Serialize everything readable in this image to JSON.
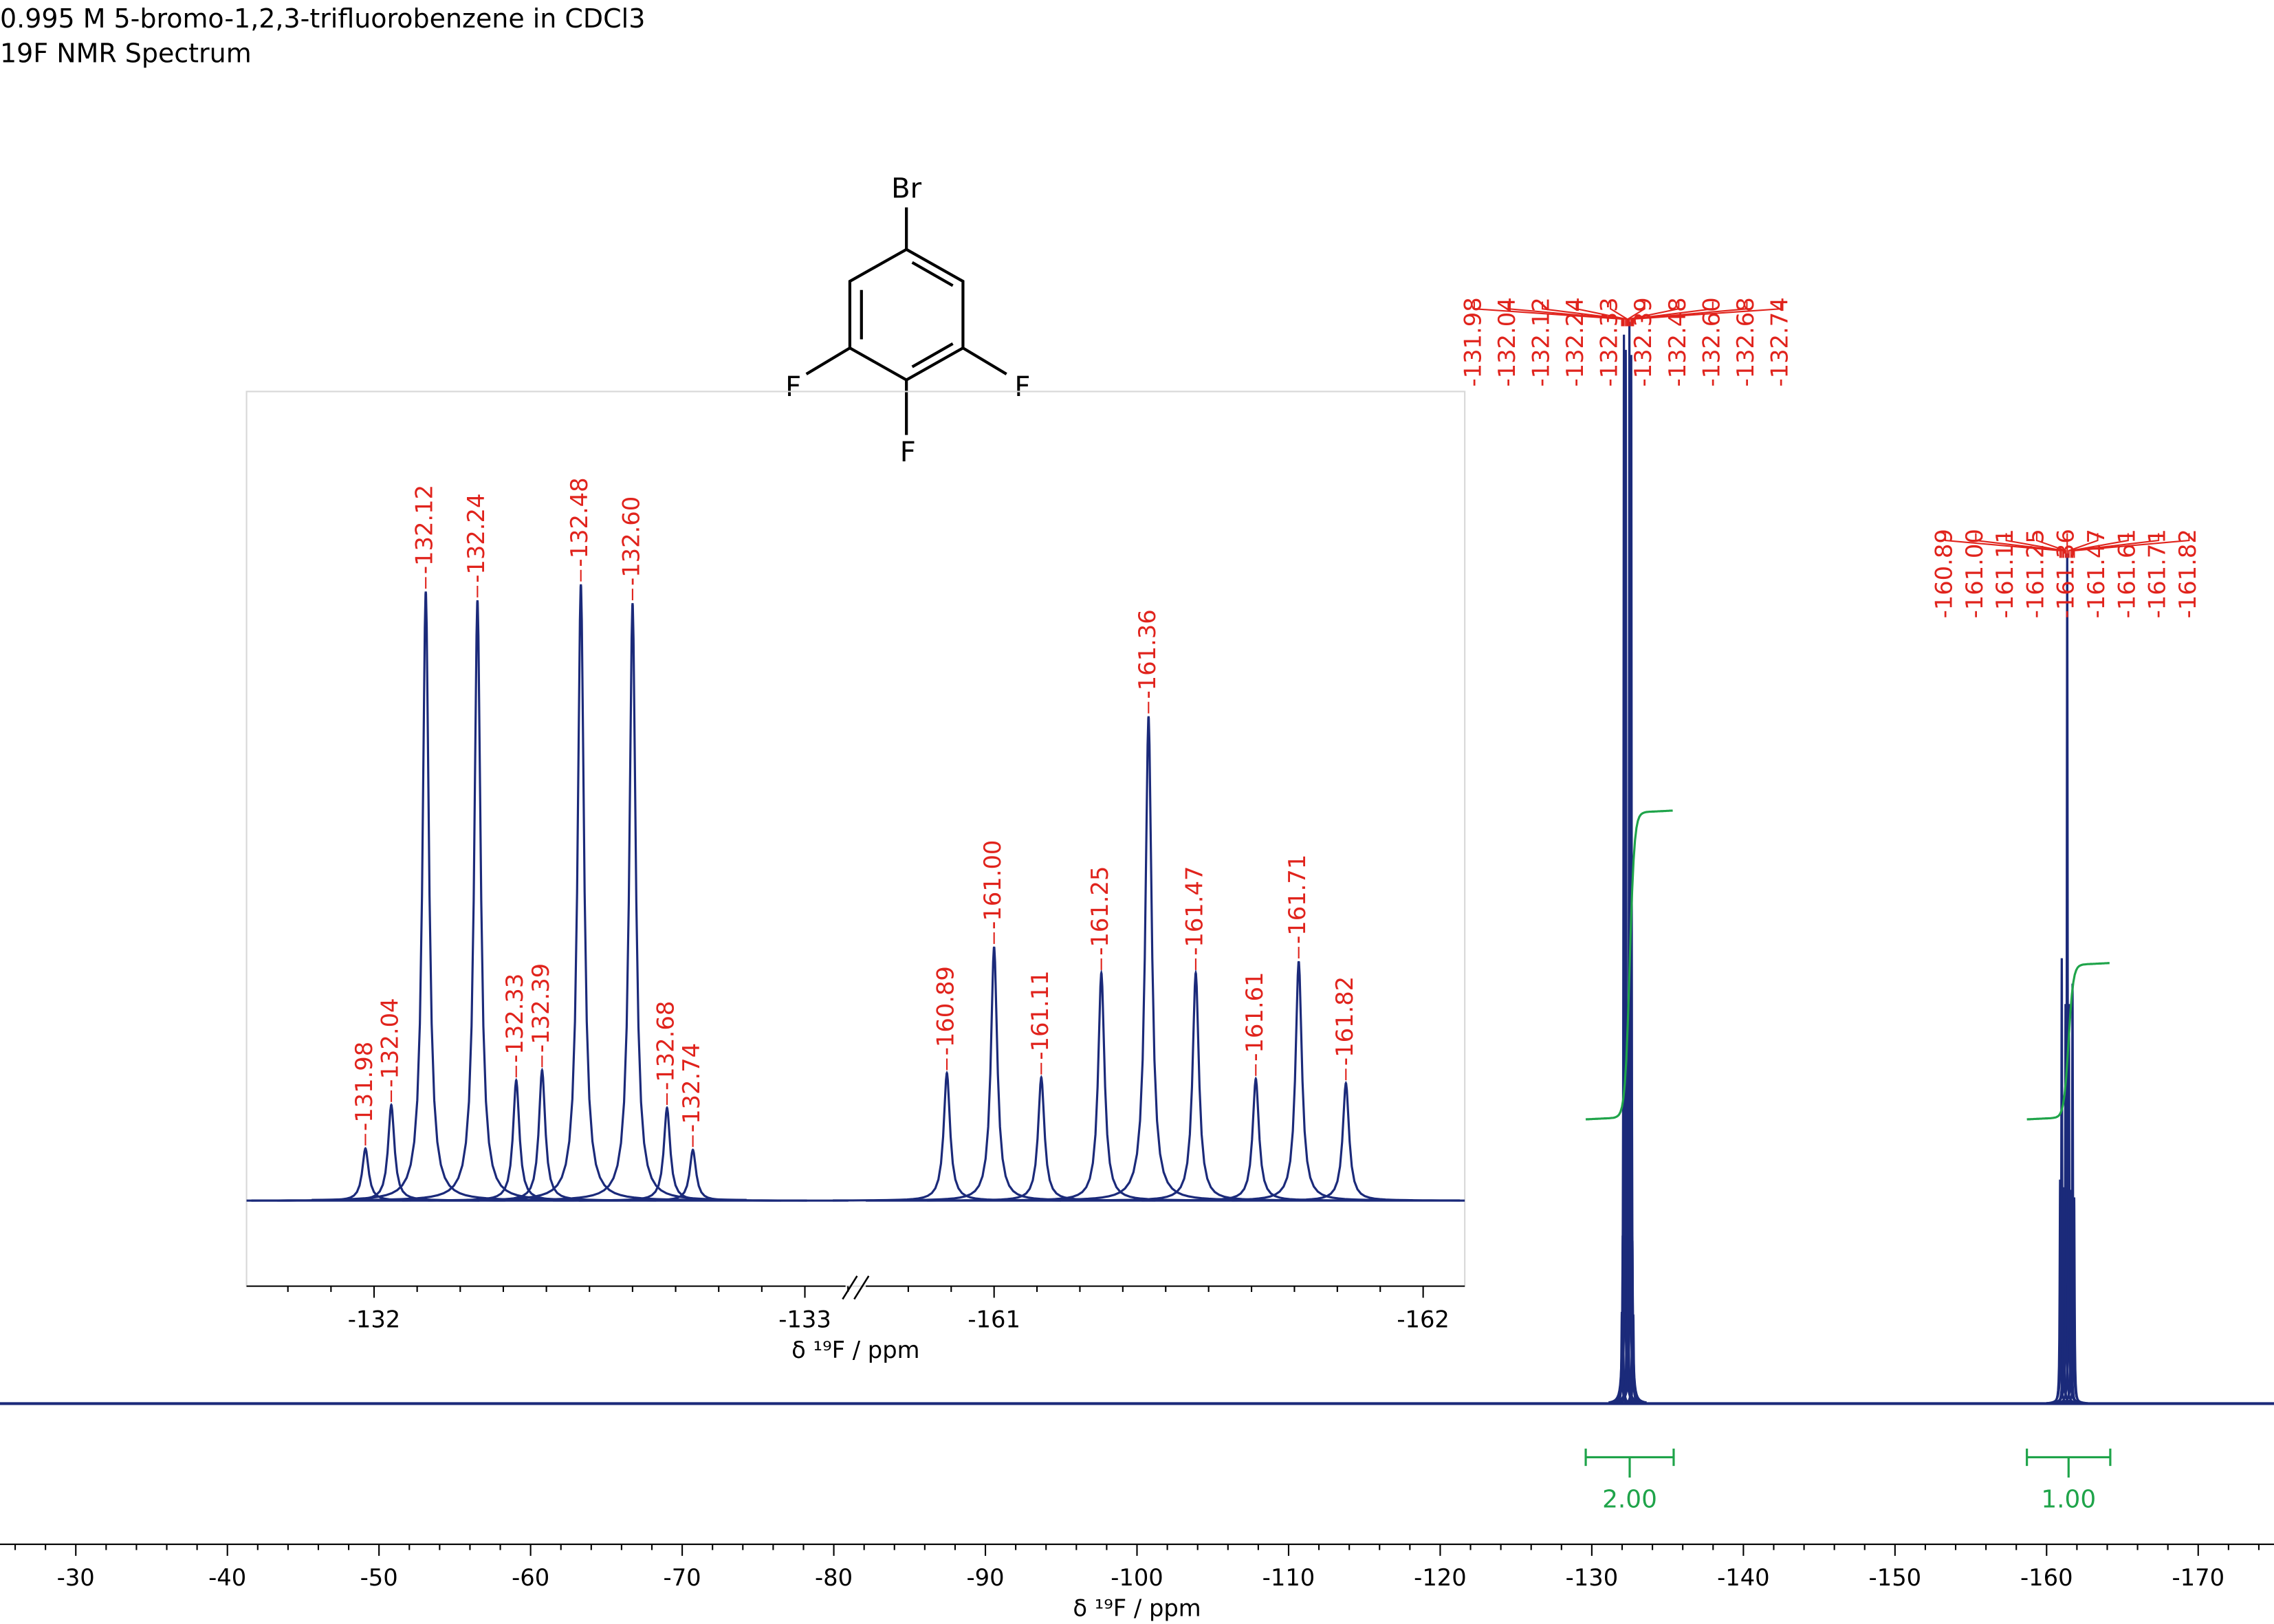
{
  "structure": {
    "atoms": [
      "Br",
      "F",
      "F",
      "F"
    ]
  },
  "chart_data": [
    {
      "type": "nmr",
      "title": "0.995 M 5-bromo-1,2,3-trifluorobenzene in CDCl3",
      "subtitle": "19F NMR Spectrum",
      "x_label": "δ ¹⁹F / ppm",
      "xlim": [
        -25,
        -175
      ],
      "xticks": [
        -30,
        -40,
        -50,
        -60,
        -70,
        -80,
        -90,
        -100,
        -110,
        -120,
        -130,
        -140,
        -150,
        -160,
        -170
      ],
      "color": "#1b2a7a",
      "peak_label_color": "#e0231c",
      "integral_color": "#1fa44a",
      "multiplets": [
        {
          "peaks": [
            -131.98,
            -132.04,
            -132.12,
            -132.24,
            -132.33,
            -132.39,
            -132.48,
            {
              "value": -132.6,
              "label": "-132.60"
            },
            -132.68,
            -132.74
          ],
          "intensities": [
            36,
            66,
            420,
            414,
            83,
            90,
            425,
            412,
            64,
            35
          ]
        },
        {
          "peaks": [
            -160.89,
            {
              "value": -161,
              "label": "-161.00"
            },
            -161.11,
            -161.25,
            -161.36,
            -161.47,
            -161.61,
            -161.71,
            -161.82
          ],
          "intensities": [
            88,
            175,
            85,
            157,
            334,
            157,
            84,
            165,
            81
          ]
        }
      ],
      "integrals": [
        {
          "range": [
            -129.6,
            -135.4
          ],
          "value": 2,
          "label": "2.00"
        },
        {
          "range": [
            -158.7,
            -164.2
          ],
          "value": 1,
          "label": "1.00"
        }
      ]
    },
    {
      "type": "nmr-inset",
      "x_label": "δ ¹⁹F / ppm",
      "segments": [
        {
          "xlim": [
            -131.704,
            -133.101
          ],
          "xticks": [
            -132,
            -133
          ]
        },
        {
          "xlim": [
            -160.701,
            -162.097
          ],
          "xticks": [
            -161,
            -162
          ]
        }
      ]
    }
  ]
}
